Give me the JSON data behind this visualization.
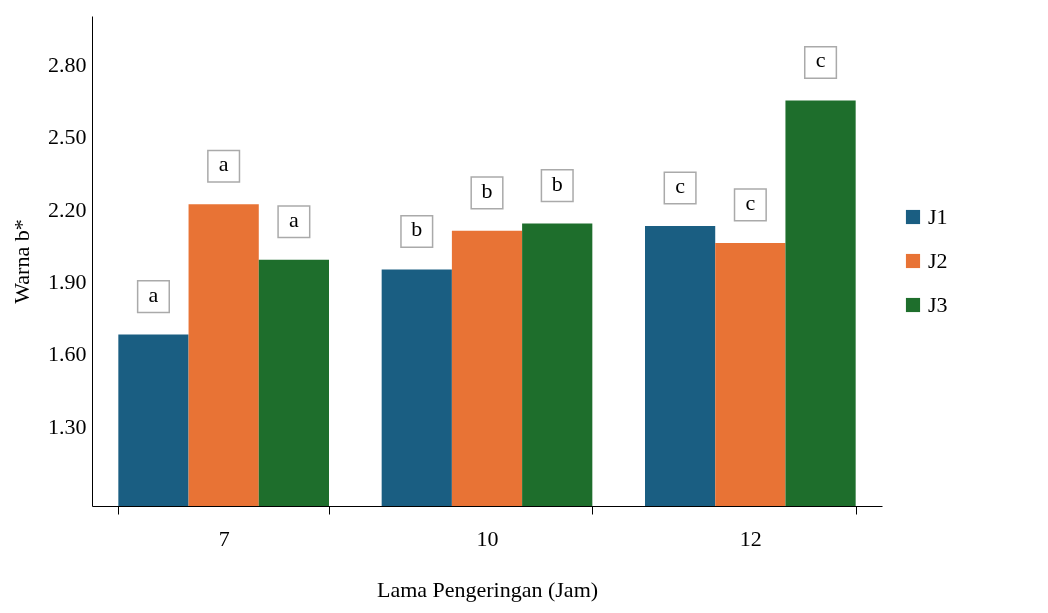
{
  "chart_data": {
    "type": "bar",
    "xlabel": "Lama Pengeringan (Jam)",
    "ylabel": "Warna b*",
    "categories": [
      "7",
      "10",
      "12"
    ],
    "series": [
      {
        "name": "J1",
        "color": "#1a5e82",
        "values": [
          1.68,
          1.95,
          2.13
        ]
      },
      {
        "name": "J2",
        "color": "#e87335",
        "values": [
          2.22,
          2.11,
          2.06
        ]
      },
      {
        "name": "J3",
        "color": "#1e6e2c",
        "values": [
          1.99,
          2.14,
          2.65
        ]
      }
    ],
    "ylim": [
      0.97,
      3.0
    ],
    "yticks": [
      {
        "value": 1.3,
        "label": "1.30"
      },
      {
        "value": 1.6,
        "label": "1.60"
      },
      {
        "value": 1.9,
        "label": "1.90"
      },
      {
        "value": 2.2,
        "label": "2.20"
      },
      {
        "value": 2.5,
        "label": "2.50"
      },
      {
        "value": 2.8,
        "label": "2.80"
      }
    ],
    "legend": "right",
    "grid": false,
    "annotations": [
      "a",
      "a",
      "a",
      "b",
      "b",
      "b",
      "c",
      "c",
      "c"
    ]
  }
}
